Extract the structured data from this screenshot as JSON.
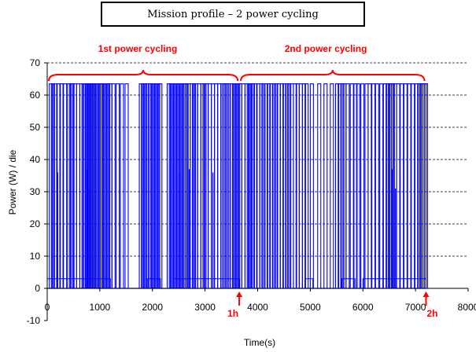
{
  "chart_data": {
    "type": "line",
    "title": "Mission profile – 2 power cycling",
    "xlabel": "Time(s)",
    "ylabel": "Power (W) / die",
    "xlim": [
      0,
      8000
    ],
    "ylim": [
      -10,
      70
    ],
    "xticks": [
      0,
      1000,
      2000,
      3000,
      4000,
      5000,
      6000,
      7000,
      8000
    ],
    "yticks": [
      -10,
      0,
      10,
      20,
      30,
      40,
      50,
      60,
      70
    ],
    "grid": "horizontal dashed",
    "series_color": "#0000ff",
    "annotation_color": "#ff0000",
    "series": [
      {
        "peak_value": 63.5,
        "low_value": 3,
        "mid_values": [
          36,
          37,
          31
        ],
        "end_time": 7200,
        "pulse_times": [
          40,
          80,
          120,
          190,
          240,
          310,
          380,
          420,
          450,
          500,
          560,
          620,
          660,
          690,
          730,
          750,
          770,
          790,
          810,
          830,
          860,
          900,
          940,
          980,
          1010,
          1050,
          1090,
          1130,
          1170,
          1230,
          1310,
          1390,
          1480,
          1750,
          1790,
          1830,
          1870,
          1920,
          1960,
          2000,
          2040,
          2080,
          2120,
          2280,
          2320,
          2360,
          2400,
          2440,
          2480,
          2520,
          2560,
          2590,
          2620,
          2660,
          2720,
          2760,
          2800,
          2860,
          2920,
          2960,
          3000,
          3060,
          3120,
          3180,
          3240,
          3300,
          3330,
          3360,
          3390,
          3420,
          3480,
          3520,
          3560,
          3600,
          3640,
          3700,
          3760,
          3800,
          3840,
          3880,
          3930,
          3980,
          4040,
          4080,
          4130,
          4180,
          4230,
          4280,
          4320,
          4370,
          4430,
          4480,
          4530,
          4570,
          4620,
          4680,
          4730,
          4790,
          4850,
          4900,
          5000,
          5140,
          5260,
          5380,
          5480,
          5530,
          5580,
          5620,
          5680,
          5760,
          5830,
          5880,
          5960,
          6040,
          6100,
          6170,
          6240,
          6320,
          6390,
          6440,
          6480,
          6510,
          6540,
          6580,
          6640,
          6710,
          6780,
          6850,
          6920,
          6990,
          7040,
          7080,
          7110,
          7140,
          7170
        ]
      }
    ],
    "annotations": [
      {
        "text": "1st power cycling",
        "x_start": 0,
        "x_end": 3650
      },
      {
        "text": "2nd power cycling",
        "x_start": 3650,
        "x_end": 7200
      },
      {
        "text": "1h",
        "x": 3650
      },
      {
        "text": "2h",
        "x": 7200
      }
    ]
  }
}
